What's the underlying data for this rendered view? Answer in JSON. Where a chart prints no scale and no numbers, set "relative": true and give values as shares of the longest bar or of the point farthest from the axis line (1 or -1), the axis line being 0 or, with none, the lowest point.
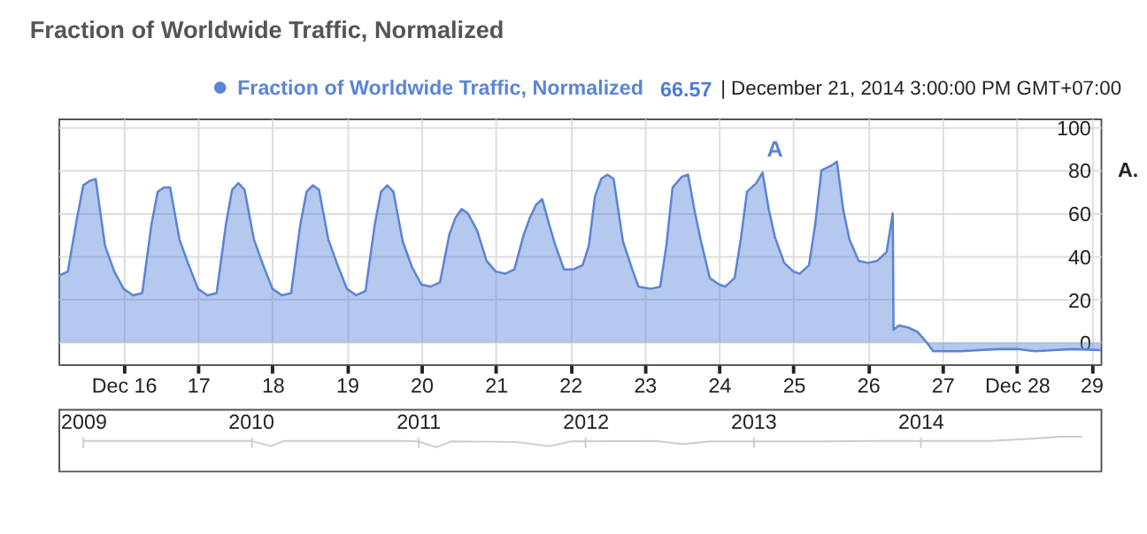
{
  "chart_data": [
    {
      "type": "area",
      "title": "Fraction of Worldwide Traffic, Normalized",
      "x": [
        "2014-12-15T03:00",
        "2014-12-15T06:00",
        "2014-12-15T09:00",
        "2014-12-15T11:00",
        "2014-12-15T13:00",
        "2014-12-15T15:00",
        "2014-12-15T18:00",
        "2014-12-15T21:00",
        "2014-12-16T00:00",
        "2014-12-16T03:00",
        "2014-12-16T06:00",
        "2014-12-16T09:00",
        "2014-12-16T11:00",
        "2014-12-16T13:00",
        "2014-12-16T15:00",
        "2014-12-16T18:00",
        "2014-12-16T21:00",
        "2014-12-17T00:00",
        "2014-12-17T03:00",
        "2014-12-17T06:00",
        "2014-12-17T09:00",
        "2014-12-17T11:00",
        "2014-12-17T13:00",
        "2014-12-17T15:00",
        "2014-12-17T18:00",
        "2014-12-17T21:00",
        "2014-12-18T00:00",
        "2014-12-18T03:00",
        "2014-12-18T06:00",
        "2014-12-18T09:00",
        "2014-12-18T11:00",
        "2014-12-18T13:00",
        "2014-12-18T15:00",
        "2014-12-18T18:00",
        "2014-12-18T21:00",
        "2014-12-19T00:00",
        "2014-12-19T03:00",
        "2014-12-19T06:00",
        "2014-12-19T09:00",
        "2014-12-19T11:00",
        "2014-12-19T13:00",
        "2014-12-19T15:00",
        "2014-12-19T18:00",
        "2014-12-19T21:00",
        "2014-12-20T00:00",
        "2014-12-20T03:00",
        "2014-12-20T06:00",
        "2014-12-20T09:00",
        "2014-12-20T11:00",
        "2014-12-20T13:00",
        "2014-12-20T15:00",
        "2014-12-20T18:00",
        "2014-12-20T21:00",
        "2014-12-21T00:00",
        "2014-12-21T03:00",
        "2014-12-21T06:00",
        "2014-12-21T09:00",
        "2014-12-21T11:00",
        "2014-12-21T13:00",
        "2014-12-21T15:00",
        "2014-12-21T17:00",
        "2014-12-21T19:00",
        "2014-12-21T22:00",
        "2014-12-22T01:00",
        "2014-12-22T04:00",
        "2014-12-22T06:00",
        "2014-12-22T08:00",
        "2014-12-22T10:00",
        "2014-12-22T12:00",
        "2014-12-22T14:00",
        "2014-12-22T17:00",
        "2014-12-22T20:00",
        "2014-12-22T22:00",
        "2014-12-23T02:00",
        "2014-12-23T05:00",
        "2014-12-23T07:00",
        "2014-12-23T09:00",
        "2014-12-23T12:00",
        "2014-12-23T14:00",
        "2014-12-23T16:00",
        "2014-12-23T18:00",
        "2014-12-23T21:00",
        "2014-12-24T00:00",
        "2014-12-24T02:00",
        "2014-12-24T05:00",
        "2014-12-24T07:00",
        "2014-12-24T09:00",
        "2014-12-24T12:00",
        "2014-12-24T14:00",
        "2014-12-24T16:00",
        "2014-12-24T18:00",
        "2014-12-24T21:00",
        "2014-12-25T00:00",
        "2014-12-25T02:00",
        "2014-12-25T05:00",
        "2014-12-25T07:00",
        "2014-12-25T09:00",
        "2014-12-25T12:00",
        "2014-12-25T14:00",
        "2014-12-25T16:00",
        "2014-12-25T18:00",
        "2014-12-25T21:00",
        "2014-12-26T00:00",
        "2014-12-26T03:00",
        "2014-12-26T06:00",
        "2014-12-26T08:00",
        "2014-12-26T08:15",
        "2014-12-26T10:00",
        "2014-12-26T13:00",
        "2014-12-26T16:00",
        "2014-12-26T19:00",
        "2014-12-26T21:00",
        "2014-12-27T00:00",
        "2014-12-27T06:00",
        "2014-12-27T12:00",
        "2014-12-27T18:00",
        "2014-12-28T00:00",
        "2014-12-28T06:00",
        "2014-12-28T12:00",
        "2014-12-28T18:00",
        "2014-12-29T03:00"
      ],
      "series": [
        {
          "name": "Fraction of Worldwide Traffic, Normalized",
          "color": "#5b84d6",
          "values": [
            31,
            33,
            58,
            73,
            75,
            76,
            45,
            33,
            25,
            22,
            23,
            55,
            70,
            72,
            72,
            48,
            36,
            25,
            22,
            23,
            55,
            71,
            74,
            71,
            48,
            36,
            25,
            22,
            23,
            55,
            70,
            73,
            71,
            48,
            36,
            25,
            22,
            24,
            55,
            70,
            73,
            70,
            47,
            35,
            27,
            26,
            28,
            50,
            58,
            62,
            60,
            52,
            38,
            33,
            32,
            34,
            50,
            58,
            64,
            66.57,
            56,
            46,
            34,
            34,
            36,
            45,
            68,
            76,
            78,
            76,
            47,
            34,
            26,
            25,
            26,
            45,
            72,
            77,
            78,
            62,
            48,
            30,
            27,
            26,
            30,
            48,
            70,
            74,
            79,
            62,
            49,
            37,
            33,
            32,
            36,
            55,
            80,
            82,
            84,
            62,
            48,
            38,
            37,
            38,
            42,
            60,
            6,
            8,
            7,
            5,
            0,
            -4,
            -4,
            -4,
            -3.5,
            -3,
            -3,
            -4,
            -3.5,
            -3,
            -3.5
          ]
        }
      ],
      "xlim": [
        "2014-12-15T03:00",
        "2014-12-29T03:00"
      ],
      "xticks": [
        {
          "value": "2014-12-16",
          "label": "Dec 16"
        },
        {
          "value": "2014-12-17",
          "label": "17"
        },
        {
          "value": "2014-12-18",
          "label": "18"
        },
        {
          "value": "2014-12-19",
          "label": "19"
        },
        {
          "value": "2014-12-20",
          "label": "20"
        },
        {
          "value": "2014-12-21",
          "label": "21"
        },
        {
          "value": "2014-12-22",
          "label": "22"
        },
        {
          "value": "2014-12-23",
          "label": "23"
        },
        {
          "value": "2014-12-24",
          "label": "24"
        },
        {
          "value": "2014-12-25",
          "label": "25"
        },
        {
          "value": "2014-12-26",
          "label": "26"
        },
        {
          "value": "2014-12-27",
          "label": "27"
        },
        {
          "value": "2014-12-28",
          "label": "Dec 28"
        },
        {
          "value": "2014-12-29",
          "label": "29"
        }
      ],
      "ylim": [
        -10,
        104
      ],
      "yticks": [
        0,
        20,
        40,
        60,
        80,
        100
      ],
      "grid": true,
      "legend": "top",
      "annotations": [
        "66.57",
        "| December 21, 2014 3:00:00 PM GMT+07:00",
        "A.",
        "A"
      ]
    },
    {
      "type": "line",
      "relative": true,
      "x": [
        "2009-01-01",
        "2009-06-01",
        "2010-01-01",
        "2010-02-15",
        "2010-03-15",
        "2010-12-01",
        "2011-01-01",
        "2011-02-10",
        "2011-03-15",
        "2011-08-01",
        "2011-10-15",
        "2011-12-01",
        "2012-06-01",
        "2012-08-01",
        "2012-10-01",
        "2013-06-01",
        "2013-10-01",
        "2014-06-01",
        "2014-09-01",
        "2014-11-01",
        "2014-12-20"
      ],
      "series": [
        {
          "color": "#cccccc",
          "values": [
            0.6,
            0.6,
            0.6,
            0.1,
            0.6,
            0.6,
            0.55,
            0,
            0.55,
            0.5,
            0.1,
            0.55,
            0.6,
            0.3,
            0.55,
            0.55,
            0.6,
            0.6,
            0.8,
            1,
            1
          ]
        }
      ],
      "xlim": [
        "2008-11-08",
        "2015-01-29"
      ],
      "xticks": [
        {
          "value": "2009-01-01",
          "label": "2009"
        },
        {
          "value": "2010-01-01",
          "label": "2010"
        },
        {
          "value": "2011-01-01",
          "label": "2011"
        },
        {
          "value": "2012-01-01",
          "label": "2012"
        },
        {
          "value": "2013-01-01",
          "label": "2013"
        },
        {
          "value": "2014-01-01",
          "label": "2014"
        }
      ],
      "grid": "x",
      "tick_labels": "x"
    }
  ]
}
